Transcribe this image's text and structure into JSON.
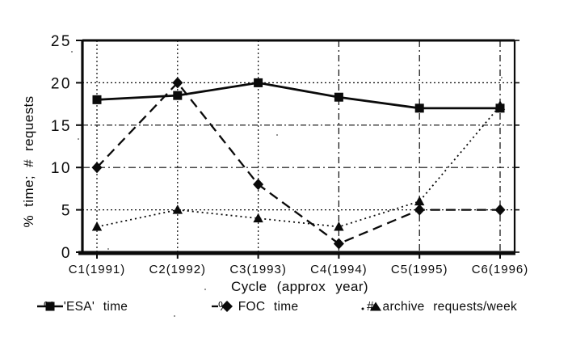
{
  "chart_data": {
    "type": "line",
    "title": "",
    "xlabel": "Cycle (approx year)",
    "ylabel": "% time; # requests",
    "categories": [
      "C1(1991)",
      "C2(1992)",
      "C3(1993)",
      "C4(1994)",
      "C5(1995)",
      "C6(1996)"
    ],
    "ylim": [
      0,
      25
    ],
    "yticks": [
      0,
      5,
      10,
      15,
      20,
      25
    ],
    "grid": true,
    "legend_position": "bottom",
    "background": "#ffffff",
    "ink": "#0a0a0a",
    "series": [
      {
        "name": "% 'ESA' time",
        "marker": "square",
        "line_style": "solid",
        "values": [
          18,
          18.5,
          20,
          18.3,
          17,
          17
        ]
      },
      {
        "name": "% FOC time",
        "marker": "diamond",
        "line_style": "dashed",
        "values": [
          10,
          20,
          8,
          1,
          5,
          5
        ]
      },
      {
        "name": "# archive requests/week",
        "marker": "triangle",
        "line_style": "dotted",
        "values": [
          3,
          5,
          4,
          3,
          6,
          17.3
        ]
      }
    ]
  }
}
